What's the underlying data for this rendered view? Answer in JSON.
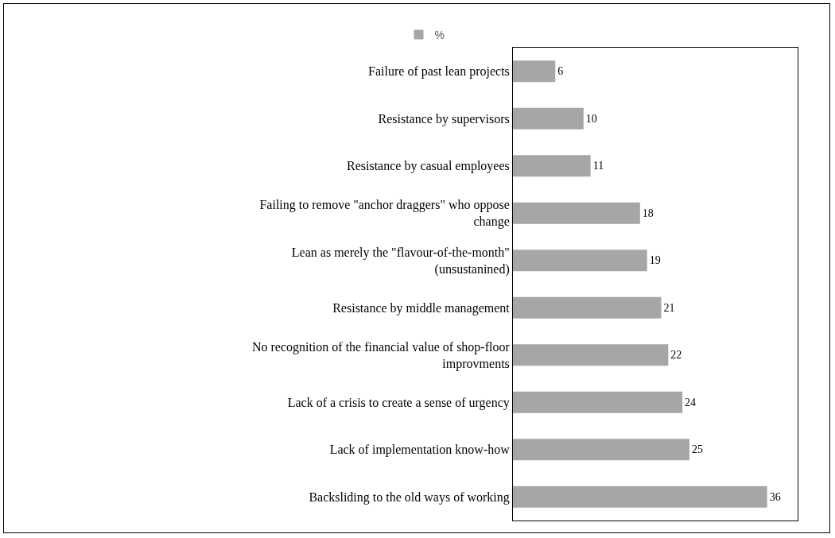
{
  "chart_data": {
    "type": "bar",
    "orientation": "horizontal",
    "categories": [
      "Failure of past lean projects",
      "Resistance by supervisors",
      "Resistance by casual employees",
      "Failing to remove \"anchor draggers\" who oppose change",
      "Lean as merely the \"flavour-of-the-month\" (unsustanined)",
      "Resistance by middle management",
      "No recognition of the financial value of shop-floor improvments",
      "Lack of a crisis to create a sense of urgency",
      "Lack of implementation know-how",
      "Backsliding to the old ways of working"
    ],
    "series": [
      {
        "name": "%",
        "color": "#a6a6a6",
        "values": [
          6,
          10,
          11,
          18,
          19,
          21,
          22,
          24,
          25,
          36
        ]
      }
    ],
    "data_labels": true,
    "grid": false,
    "legend": "top",
    "tick_labels": "y"
  }
}
